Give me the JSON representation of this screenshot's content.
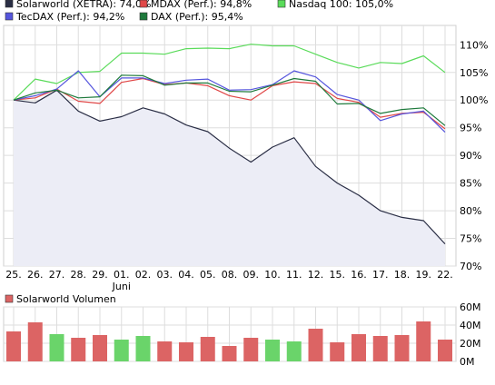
{
  "chart_data": [
    {
      "type": "line",
      "categories": [
        "25.",
        "26.",
        "27.",
        "28.",
        "29.",
        "01.",
        "02.",
        "03.",
        "04.",
        "05.",
        "08.",
        "09.",
        "10.",
        "11.",
        "12.",
        "15.",
        "16.",
        "17.",
        "18.",
        "19.",
        "22."
      ],
      "x_sublabel": {
        "index": 5,
        "text": "Juni"
      },
      "series": [
        {
          "name": "Solarworld (XETRA): 74,0%",
          "color": "#2a2e45",
          "fill": "#ecedf6",
          "area": true,
          "values": [
            100,
            99.5,
            101.8,
            98,
            96.2,
            97,
            98.6,
            97.5,
            95.5,
            94.3,
            91.3,
            88.8,
            91.5,
            93.2,
            88,
            85,
            82.8,
            80,
            78.8,
            78.2,
            74
          ]
        },
        {
          "name": "MDAX (Perf.): 94,8%",
          "color": "#e04848",
          "values": [
            100,
            100.4,
            102,
            99.8,
            99.4,
            103.2,
            103.9,
            102.8,
            103.1,
            102.6,
            100.8,
            100,
            102.6,
            103.3,
            103,
            100.3,
            99.6,
            96.9,
            97.6,
            97.8,
            94.8
          ]
        },
        {
          "name": "Nasdaq 100: 105,0%",
          "color": "#5adb5a",
          "values": [
            100,
            103.8,
            103,
            105,
            105.2,
            108.5,
            108.5,
            108.3,
            109.3,
            109.4,
            109.3,
            110.1,
            109.8,
            109.8,
            108.3,
            106.8,
            105.8,
            106.8,
            106.6,
            108,
            105
          ]
        },
        {
          "name": "TecDAX (Perf.): 94,2%",
          "color": "#5555dd",
          "values": [
            100,
            100.8,
            102,
            105.3,
            100.6,
            104,
            104,
            103,
            103.6,
            103.8,
            101.8,
            101.9,
            102.8,
            105.3,
            104.2,
            101,
            100,
            96.3,
            97.5,
            98,
            94.2
          ]
        },
        {
          "name": "DAX (Perf.): 95,4%",
          "color": "#1e7a3c",
          "values": [
            100,
            101.3,
            101.8,
            100.4,
            100.6,
            104.5,
            104.4,
            102.7,
            103.1,
            103.1,
            101.6,
            101.5,
            102.7,
            103.9,
            103.4,
            99.3,
            99.4,
            97.6,
            98.3,
            98.6,
            95.4
          ]
        }
      ],
      "y_ticks": [
        "70%",
        "75%",
        "80%",
        "85%",
        "90%",
        "95%",
        "100%",
        "105%",
        "110%"
      ],
      "ylim": [
        70,
        113.5
      ],
      "grid": true,
      "legend_position": "top"
    },
    {
      "type": "bar",
      "title": "Solarworld Volumen",
      "categories": [
        "25.",
        "26.",
        "27.",
        "28.",
        "29.",
        "01.",
        "02.",
        "03.",
        "04.",
        "05.",
        "08.",
        "09.",
        "10.",
        "11.",
        "12.",
        "15.",
        "16.",
        "17.",
        "18.",
        "19.",
        "22."
      ],
      "values": [
        33,
        43,
        30,
        26,
        29,
        24,
        28,
        22,
        21,
        27,
        17,
        26,
        24,
        22,
        36,
        21,
        30,
        28,
        29,
        44,
        24
      ],
      "colors": [
        "#dc6464",
        "#dc6464",
        "#6ad46a",
        "#dc6464",
        "#dc6464",
        "#6ad46a",
        "#6ad46a",
        "#dc6464",
        "#dc6464",
        "#dc6464",
        "#dc6464",
        "#dc6464",
        "#6ad46a",
        "#6ad46a",
        "#dc6464",
        "#dc6464",
        "#dc6464",
        "#dc6464",
        "#dc6464",
        "#dc6464",
        "#dc6464"
      ],
      "y_ticks": [
        "0M",
        "20M",
        "40M",
        "60M"
      ],
      "ylim": [
        0,
        60
      ],
      "grid": true,
      "legend_color": "#dc6464"
    }
  ]
}
